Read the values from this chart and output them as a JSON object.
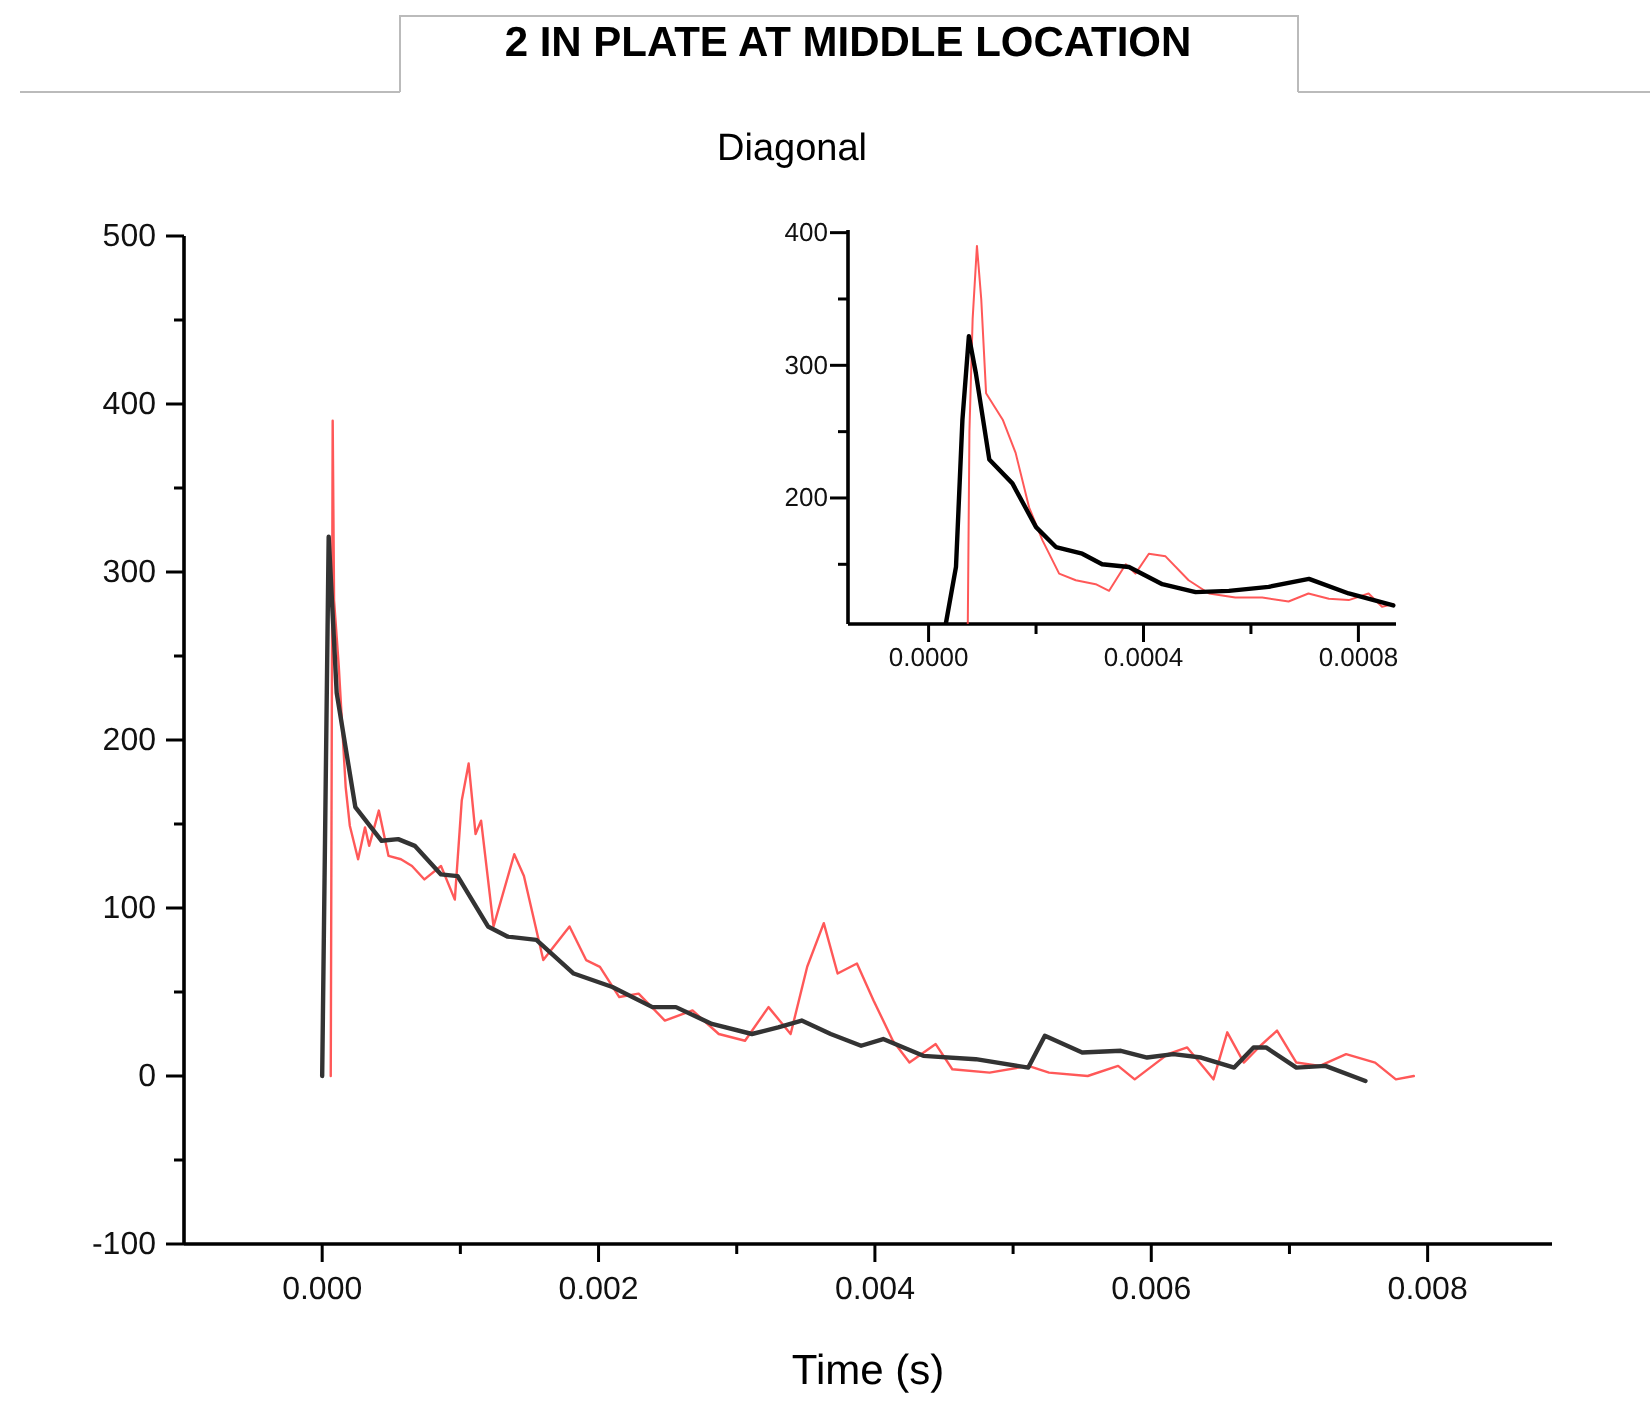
{
  "chart_data": [
    {
      "type": "line",
      "title": "2 IN PLATE AT MIDDLE LOCATION",
      "subtitle": "Diagonal",
      "xlabel": "Time (s)",
      "xlim": [
        -0.001,
        0.0089
      ],
      "xticks": [
        {
          "value": 0,
          "label": "0.000"
        },
        {
          "value": 0.001,
          "label": null
        },
        {
          "value": 0.002,
          "label": "0.002"
        },
        {
          "value": 0.003,
          "label": null
        },
        {
          "value": 0.004,
          "label": "0.004"
        },
        {
          "value": 0.005,
          "label": null
        },
        {
          "value": 0.006,
          "label": "0.006"
        },
        {
          "value": 0.007,
          "label": null
        },
        {
          "value": 0.008,
          "label": "0.008"
        }
      ],
      "ylim": [
        -100,
        500
      ],
      "yticks": [
        -100,
        {
          "value": -50,
          "label": null
        },
        0,
        {
          "value": 50,
          "label": null
        },
        100,
        {
          "value": 150,
          "label": null
        },
        200,
        {
          "value": 250,
          "label": null
        },
        300,
        {
          "value": 350,
          "label": null
        },
        400,
        {
          "value": 450,
          "label": null
        },
        500
      ],
      "series": [
        {
          "color": "#ff3b3b",
          "x": [
            6.2e-05,
            7.6e-05,
            8.6e-05,
            0.00012,
            0.00017,
            0.0002,
            0.00026,
            0.00031,
            0.00034,
            0.00041,
            0.00048,
            0.00057,
            0.00065,
            0.00074,
            0.00086,
            0.00096,
            0.00101,
            0.00106,
            0.00111,
            0.00115,
            0.00124,
            0.00139,
            0.00146,
            0.0016,
            0.00179,
            0.00191,
            0.00201,
            0.00215,
            0.00229,
            0.00248,
            0.00268,
            0.00287,
            0.00306,
            0.00323,
            0.00339,
            0.00351,
            0.00363,
            0.00373,
            0.00387,
            0.00399,
            0.00413,
            0.00425,
            0.00444,
            0.00456,
            0.00483,
            0.00511,
            0.00526,
            0.00554,
            0.00576,
            0.00588,
            0.00612,
            0.00626,
            0.00645,
            0.00655,
            0.00667,
            0.00679,
            0.00691,
            0.00705,
            0.00722,
            0.00741,
            0.00762,
            0.00777,
            0.0079
          ],
          "values": [
            0,
            390,
            283,
            244,
            172,
            149,
            129,
            148,
            137,
            158,
            131,
            129,
            125,
            117,
            125,
            105,
            164,
            186,
            144,
            152,
            89,
            132,
            119,
            69,
            89,
            69,
            65,
            47,
            49,
            33,
            39,
            25,
            21,
            41,
            25,
            65,
            91,
            61,
            67,
            45,
            21,
            8,
            19,
            4,
            2,
            6,
            2,
            0,
            6,
            -2,
            13,
            17,
            -2,
            26,
            8,
            18,
            27,
            8,
            6,
            13,
            8,
            -2,
            0
          ]
        },
        {
          "color": "#333333",
          "x": [
            0,
            4.7e-05,
            0.000105,
            0.00024,
            0.00043,
            0.00055,
            0.00067,
            0.00086,
            0.00098,
            0.0012,
            0.00134,
            0.00155,
            0.00182,
            0.0021,
            0.00239,
            0.00256,
            0.00282,
            0.00311,
            0.0033,
            0.00347,
            0.00368,
            0.0039,
            0.00406,
            0.00435,
            0.00473,
            0.00511,
            0.00523,
            0.0055,
            0.00578,
            0.00597,
            0.00616,
            0.00636,
            0.0066,
            0.00674,
            0.00683,
            0.00705,
            0.00726,
            0.00755
          ],
          "values": [
            0,
            321,
            228,
            160,
            140,
            141,
            137,
            120,
            119,
            89,
            83,
            81,
            61,
            53,
            41,
            41,
            31,
            25,
            29,
            33,
            25,
            18,
            22,
            12,
            10,
            5,
            24,
            14,
            15,
            11,
            13,
            11,
            5,
            17,
            17,
            5,
            6,
            -3
          ]
        }
      ]
    },
    {
      "type": "line",
      "xlim": [
        -0.00015,
        0.00087
      ],
      "xticks": [
        {
          "value": 0,
          "label": "0.0000"
        },
        {
          "value": 0.0002,
          "label": null
        },
        {
          "value": 0.0004,
          "label": "0.0004"
        },
        {
          "value": 0.0006,
          "label": null
        },
        {
          "value": 0.0008,
          "label": "0.0008"
        }
      ],
      "ylim": [
        105,
        402
      ],
      "yticks": [
        {
          "value": 150,
          "label": null
        },
        200,
        {
          "value": 250,
          "label": null
        },
        300,
        {
          "value": 350,
          "label": null
        },
        400
      ],
      "series": [
        {
          "color": "#ff3b3b",
          "x": [
            7.3e-05,
            7.6e-05,
            8.2e-05,
            9e-05,
            9.8e-05,
            0.000107,
            0.000138,
            0.000162,
            0.000187,
            0.000212,
            0.000243,
            0.000274,
            0.000311,
            0.000336,
            0.000367,
            0.000385,
            0.00041,
            0.000441,
            0.000484,
            0.000522,
            0.000571,
            0.000621,
            0.00067,
            0.000707,
            0.000745,
            0.000782,
            0.000819,
            0.000844,
            0.000865
          ],
          "values": [
            105,
            250,
            335,
            390,
            350,
            279,
            259,
            234,
            193,
            168,
            143,
            138,
            135,
            130,
            150,
            143,
            158,
            156,
            138,
            128,
            125,
            125,
            122,
            128,
            124,
            123,
            128,
            118,
            120
          ]
        },
        {
          "color": "#000000",
          "x": [
            3.2e-05,
            5.1e-05,
            6.3e-05,
            7.5e-05,
            8.8e-05,
            0.000113,
            0.000156,
            0.0002,
            0.000237,
            0.000286,
            0.000323,
            0.000373,
            0.000435,
            0.000497,
            0.000559,
            0.000633,
            0.000708,
            0.000782,
            0.000865
          ],
          "values": [
            105,
            148,
            259,
            322,
            294,
            229,
            211,
            178,
            163,
            158,
            150,
            148,
            135,
            129,
            130,
            133,
            139,
            128,
            119
          ]
        }
      ]
    }
  ]
}
